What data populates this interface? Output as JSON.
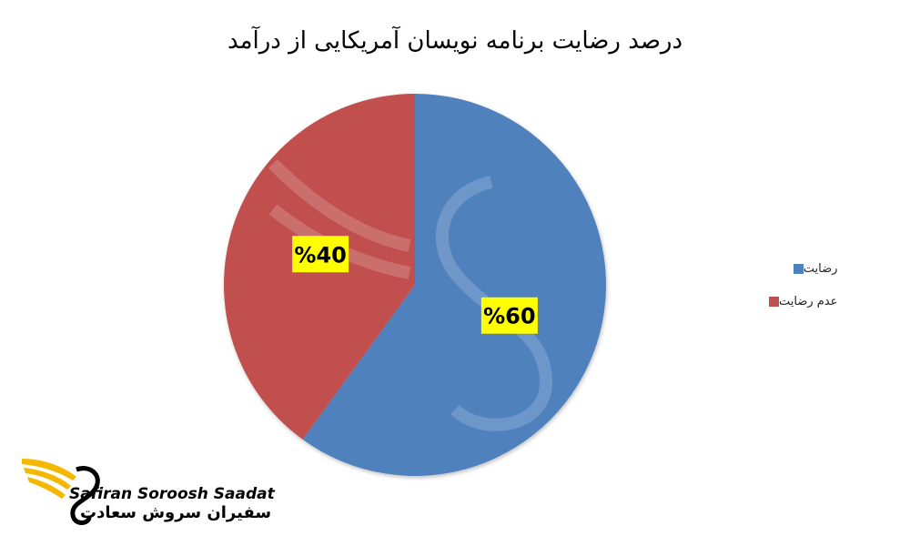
{
  "chart_data": {
    "type": "pie",
    "title": "درصد رضایت برنامه نویسان آمریکایی از درآمد",
    "slices": [
      {
        "label": "رضایت",
        "value": 60,
        "data_label": "%60",
        "color": "#4f81bd"
      },
      {
        "label": "عدم رضایت",
        "value": 40,
        "data_label": "%40",
        "color": "#c0504d"
      }
    ],
    "legend_position": "right",
    "data_label_bg": "#ffff00"
  },
  "logo": {
    "name_en": "Safiran Soroosh Saadat",
    "name_fa": "سفیران سروش سعادت",
    "accent_color": "#f5b800"
  }
}
